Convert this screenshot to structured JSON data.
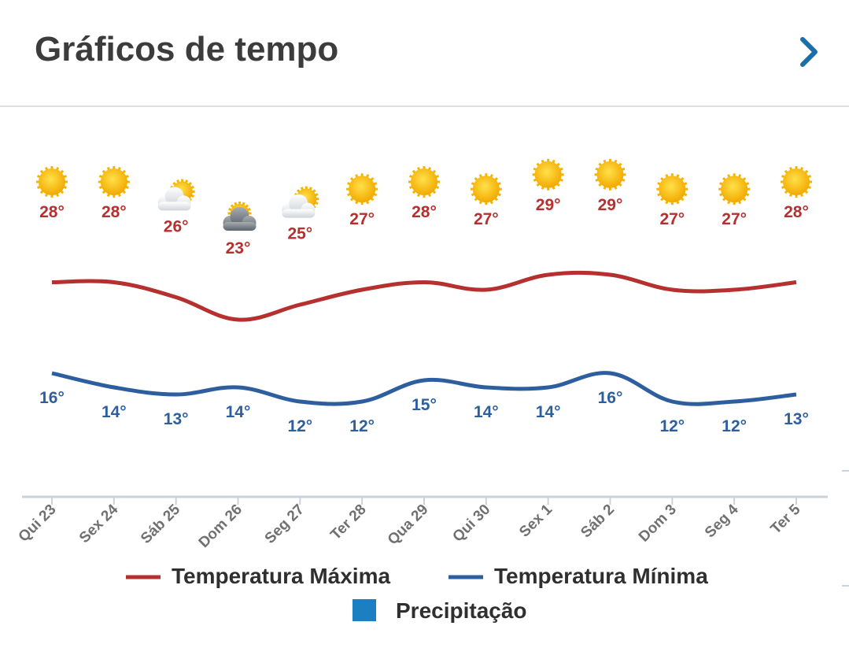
{
  "header": {
    "title": "Gráficos de tempo"
  },
  "chart_data": {
    "type": "line",
    "categories": [
      "Qui 23",
      "Sex 24",
      "Sáb 25",
      "Dom 26",
      "Seg 27",
      "Ter 28",
      "Qua 29",
      "Qui 30",
      "Sex 1",
      "Sáb 2",
      "Dom 3",
      "Seg 4",
      "Ter 5"
    ],
    "icons": [
      "sun-icon",
      "sun-icon",
      "partly-cloudy-icon",
      "cloudy-icon",
      "partly-cloudy-icon",
      "sun-icon",
      "sun-icon",
      "sun-icon",
      "sun-icon",
      "sun-icon",
      "sun-icon",
      "sun-icon",
      "sun-icon"
    ],
    "series": [
      {
        "name": "Temperatura Máxima",
        "color": "#b5302e",
        "values": [
          28,
          28,
          26,
          23,
          25,
          27,
          28,
          27,
          29,
          29,
          27,
          27,
          28
        ],
        "labels": [
          "28°",
          "28°",
          "26°",
          "23°",
          "25°",
          "27°",
          "28°",
          "27°",
          "29°",
          "29°",
          "27°",
          "27°",
          "28°"
        ]
      },
      {
        "name": "Temperatura Mínima",
        "color": "#2d5f9f",
        "values": [
          16,
          14,
          13,
          14,
          12,
          12,
          15,
          14,
          14,
          16,
          12,
          12,
          13
        ],
        "labels": [
          "16°",
          "14°",
          "13°",
          "14°",
          "12°",
          "12°",
          "15°",
          "14°",
          "14°",
          "16°",
          "12°",
          "12°",
          "13°"
        ]
      }
    ],
    "legend": [
      {
        "label": "Temperatura Máxima",
        "color": "#b5302e",
        "kind": "line"
      },
      {
        "label": "Temperatura Mínima",
        "color": "#2d5f9f",
        "kind": "line"
      },
      {
        "label": "Precipitação",
        "color": "#1b7fc1",
        "kind": "square"
      }
    ],
    "legend_position": "bottom"
  }
}
